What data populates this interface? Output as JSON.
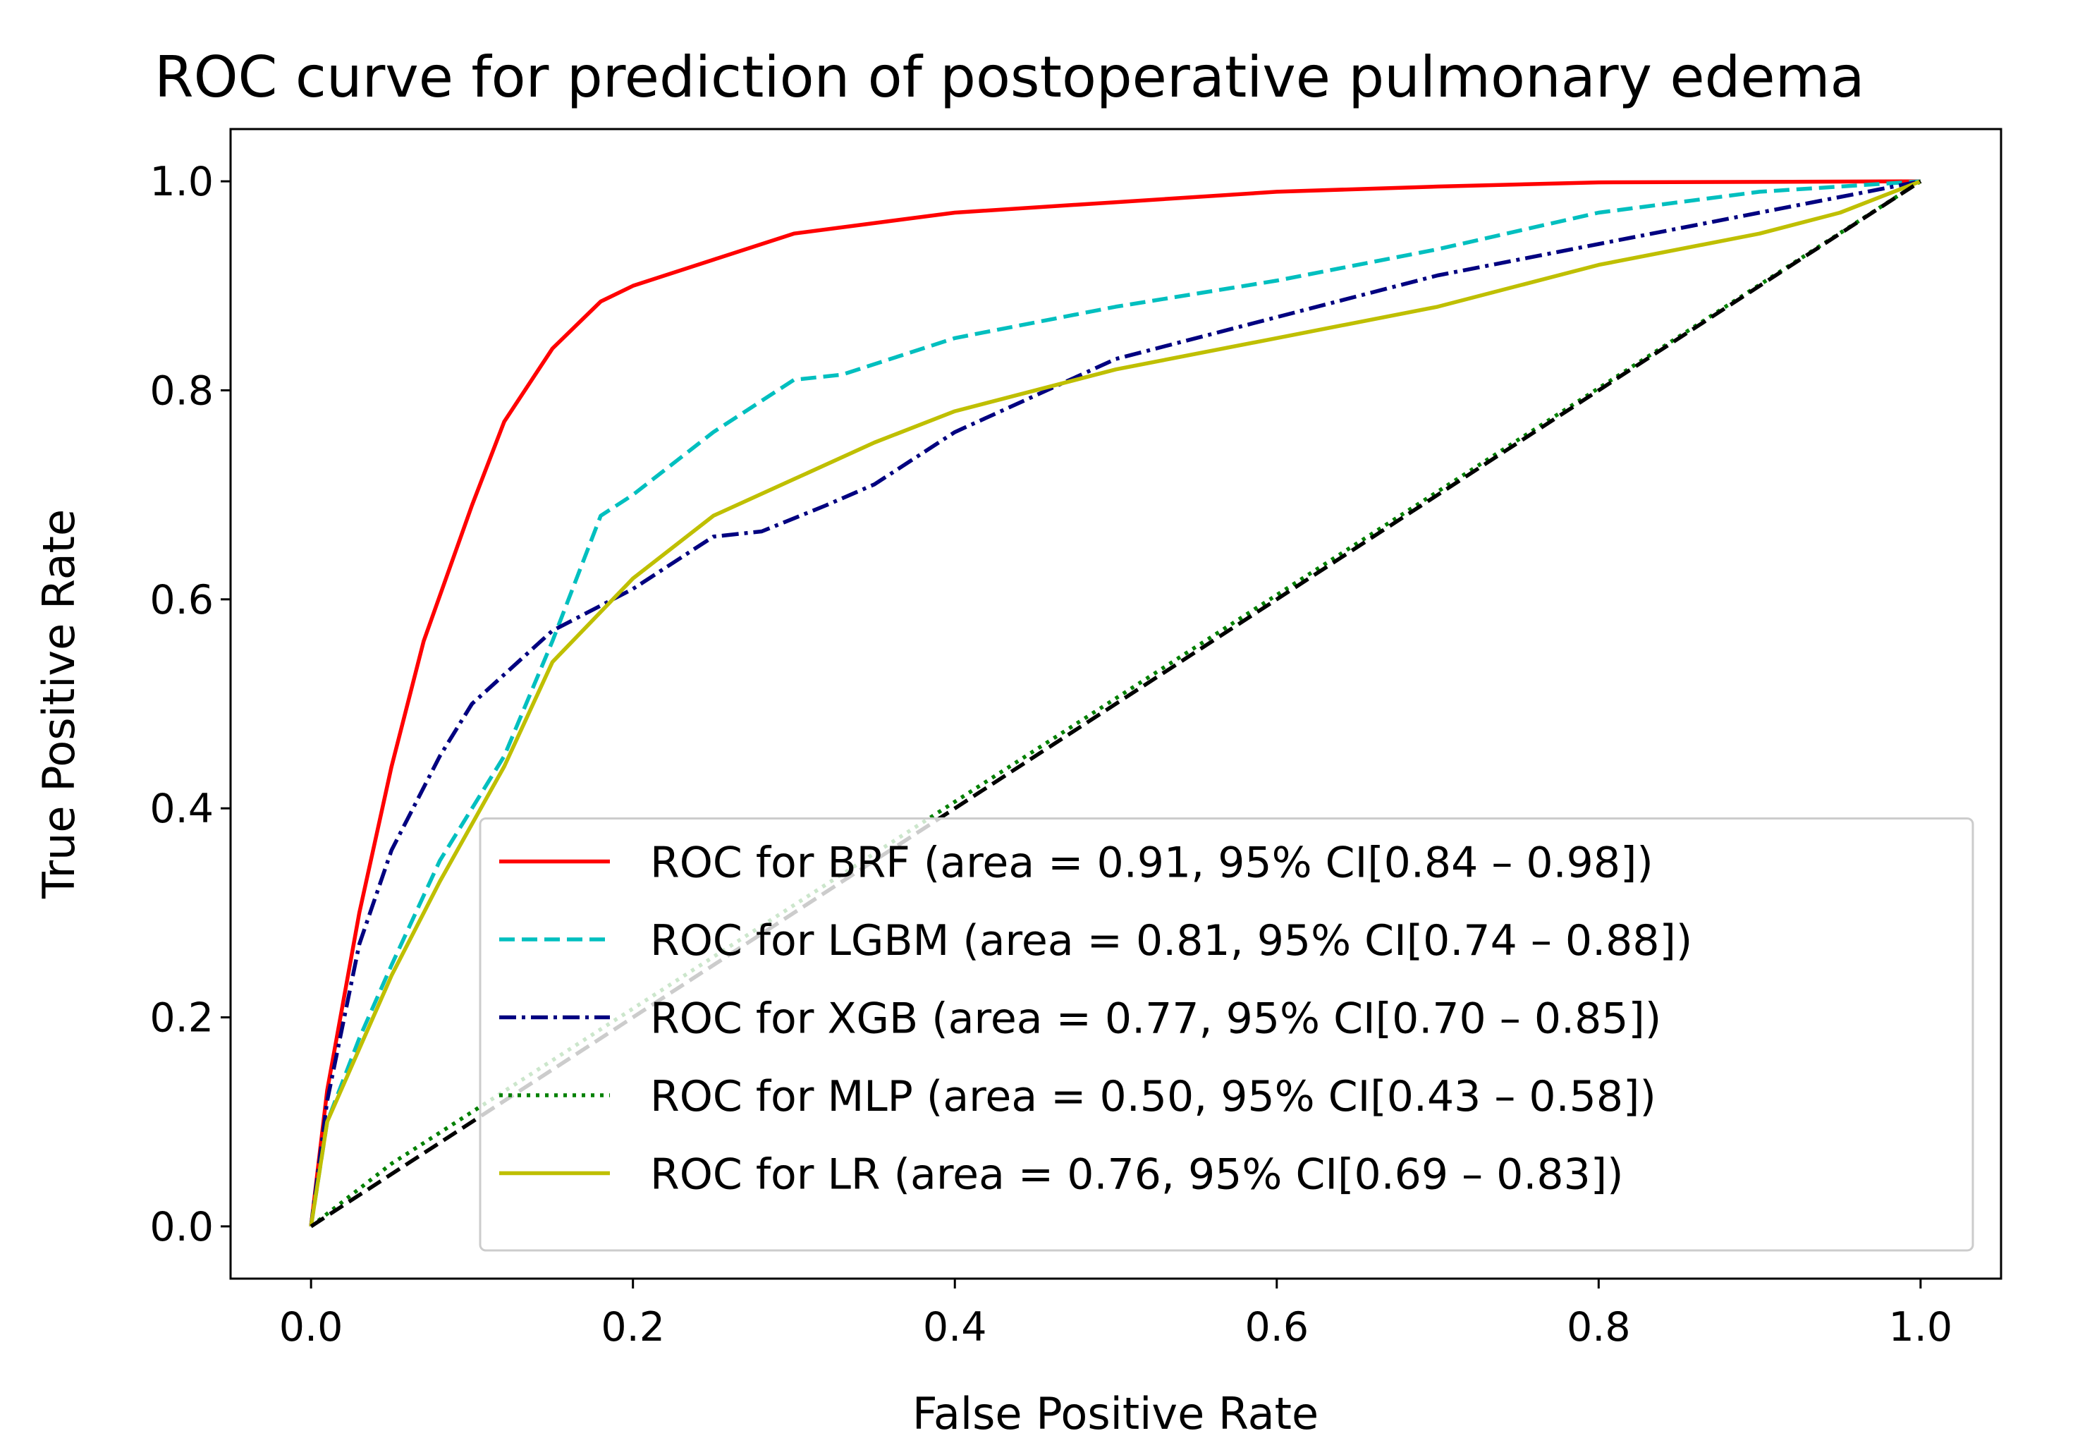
{
  "chart_data": {
    "type": "line",
    "title": "ROC curve for prediction of postoperative pulmonary edema",
    "xlabel": "False Positive Rate",
    "ylabel": "True Positive Rate",
    "xlim": [
      -0.05,
      1.05
    ],
    "ylim": [
      -0.05,
      1.05
    ],
    "xticks": [
      {
        "value": 0,
        "label": "0.0"
      },
      0.2,
      0.4,
      0.6,
      0.8,
      {
        "value": 1,
        "label": "1.0"
      }
    ],
    "yticks": [
      {
        "value": 0,
        "label": "0.0"
      },
      0.2,
      0.4,
      0.6,
      0.8,
      {
        "value": 1,
        "label": "1.0"
      }
    ],
    "grid": false,
    "legend": "lower right",
    "series": [
      {
        "name": "ROC for BRF (area = 0.91, 95% CI[0.84 – 0.98])",
        "color": "#ff0000",
        "style": "solid",
        "x": [
          0,
          0.01,
          0.03,
          0.05,
          0.07,
          0.1,
          0.12,
          0.15,
          0.18,
          0.2,
          0.25,
          0.3,
          0.4,
          0.5,
          0.6,
          0.7,
          0.8,
          1
        ],
        "values": [
          0,
          0.13,
          0.3,
          0.44,
          0.56,
          0.69,
          0.77,
          0.84,
          0.885,
          0.9,
          0.925,
          0.95,
          0.97,
          0.98,
          0.99,
          0.995,
          0.999,
          1
        ]
      },
      {
        "name": "ROC for LGBM (area = 0.81, 95% CI[0.74 – 0.88])",
        "color": "#00bfbf",
        "style": "dashed",
        "x": [
          0,
          0.01,
          0.03,
          0.05,
          0.08,
          0.12,
          0.15,
          0.18,
          0.2,
          0.25,
          0.3,
          0.33,
          0.4,
          0.5,
          0.6,
          0.7,
          0.8,
          0.9,
          1
        ],
        "values": [
          0,
          0.1,
          0.18,
          0.25,
          0.35,
          0.45,
          0.56,
          0.68,
          0.7,
          0.76,
          0.81,
          0.815,
          0.85,
          0.88,
          0.905,
          0.935,
          0.97,
          0.99,
          1
        ]
      },
      {
        "name": "ROC for XGB (area = 0.77, 95% CI[0.70 – 0.85])",
        "color": "#000080",
        "style": "dashdot",
        "x": [
          0,
          0.01,
          0.03,
          0.05,
          0.08,
          0.1,
          0.15,
          0.2,
          0.23,
          0.25,
          0.28,
          0.32,
          0.35,
          0.4,
          0.5,
          0.6,
          0.7,
          0.8,
          0.9,
          1
        ],
        "values": [
          0,
          0.12,
          0.27,
          0.36,
          0.45,
          0.5,
          0.57,
          0.61,
          0.64,
          0.66,
          0.665,
          0.69,
          0.71,
          0.76,
          0.83,
          0.87,
          0.91,
          0.94,
          0.97,
          1
        ]
      },
      {
        "name": "ROC for MLP (area = 0.50, 95% CI[0.43 – 0.58])",
        "color": "#008000",
        "style": "dotted",
        "x": [
          0,
          0.05,
          1
        ],
        "values": [
          0,
          0.06,
          1
        ]
      },
      {
        "name": "ROC for LR (area = 0.76, 95% CI[0.69 – 0.83])",
        "color": "#bfbf00",
        "style": "solid",
        "x": [
          0,
          0.01,
          0.03,
          0.05,
          0.08,
          0.12,
          0.15,
          0.2,
          0.25,
          0.3,
          0.35,
          0.4,
          0.5,
          0.6,
          0.7,
          0.8,
          0.9,
          0.95,
          1
        ],
        "values": [
          0,
          0.1,
          0.17,
          0.24,
          0.33,
          0.44,
          0.54,
          0.62,
          0.68,
          0.715,
          0.75,
          0.78,
          0.82,
          0.85,
          0.88,
          0.92,
          0.95,
          0.97,
          1
        ]
      },
      {
        "color": "#000000",
        "style": "dashed",
        "x": [
          0,
          1
        ],
        "values": [
          0,
          1
        ]
      }
    ]
  }
}
